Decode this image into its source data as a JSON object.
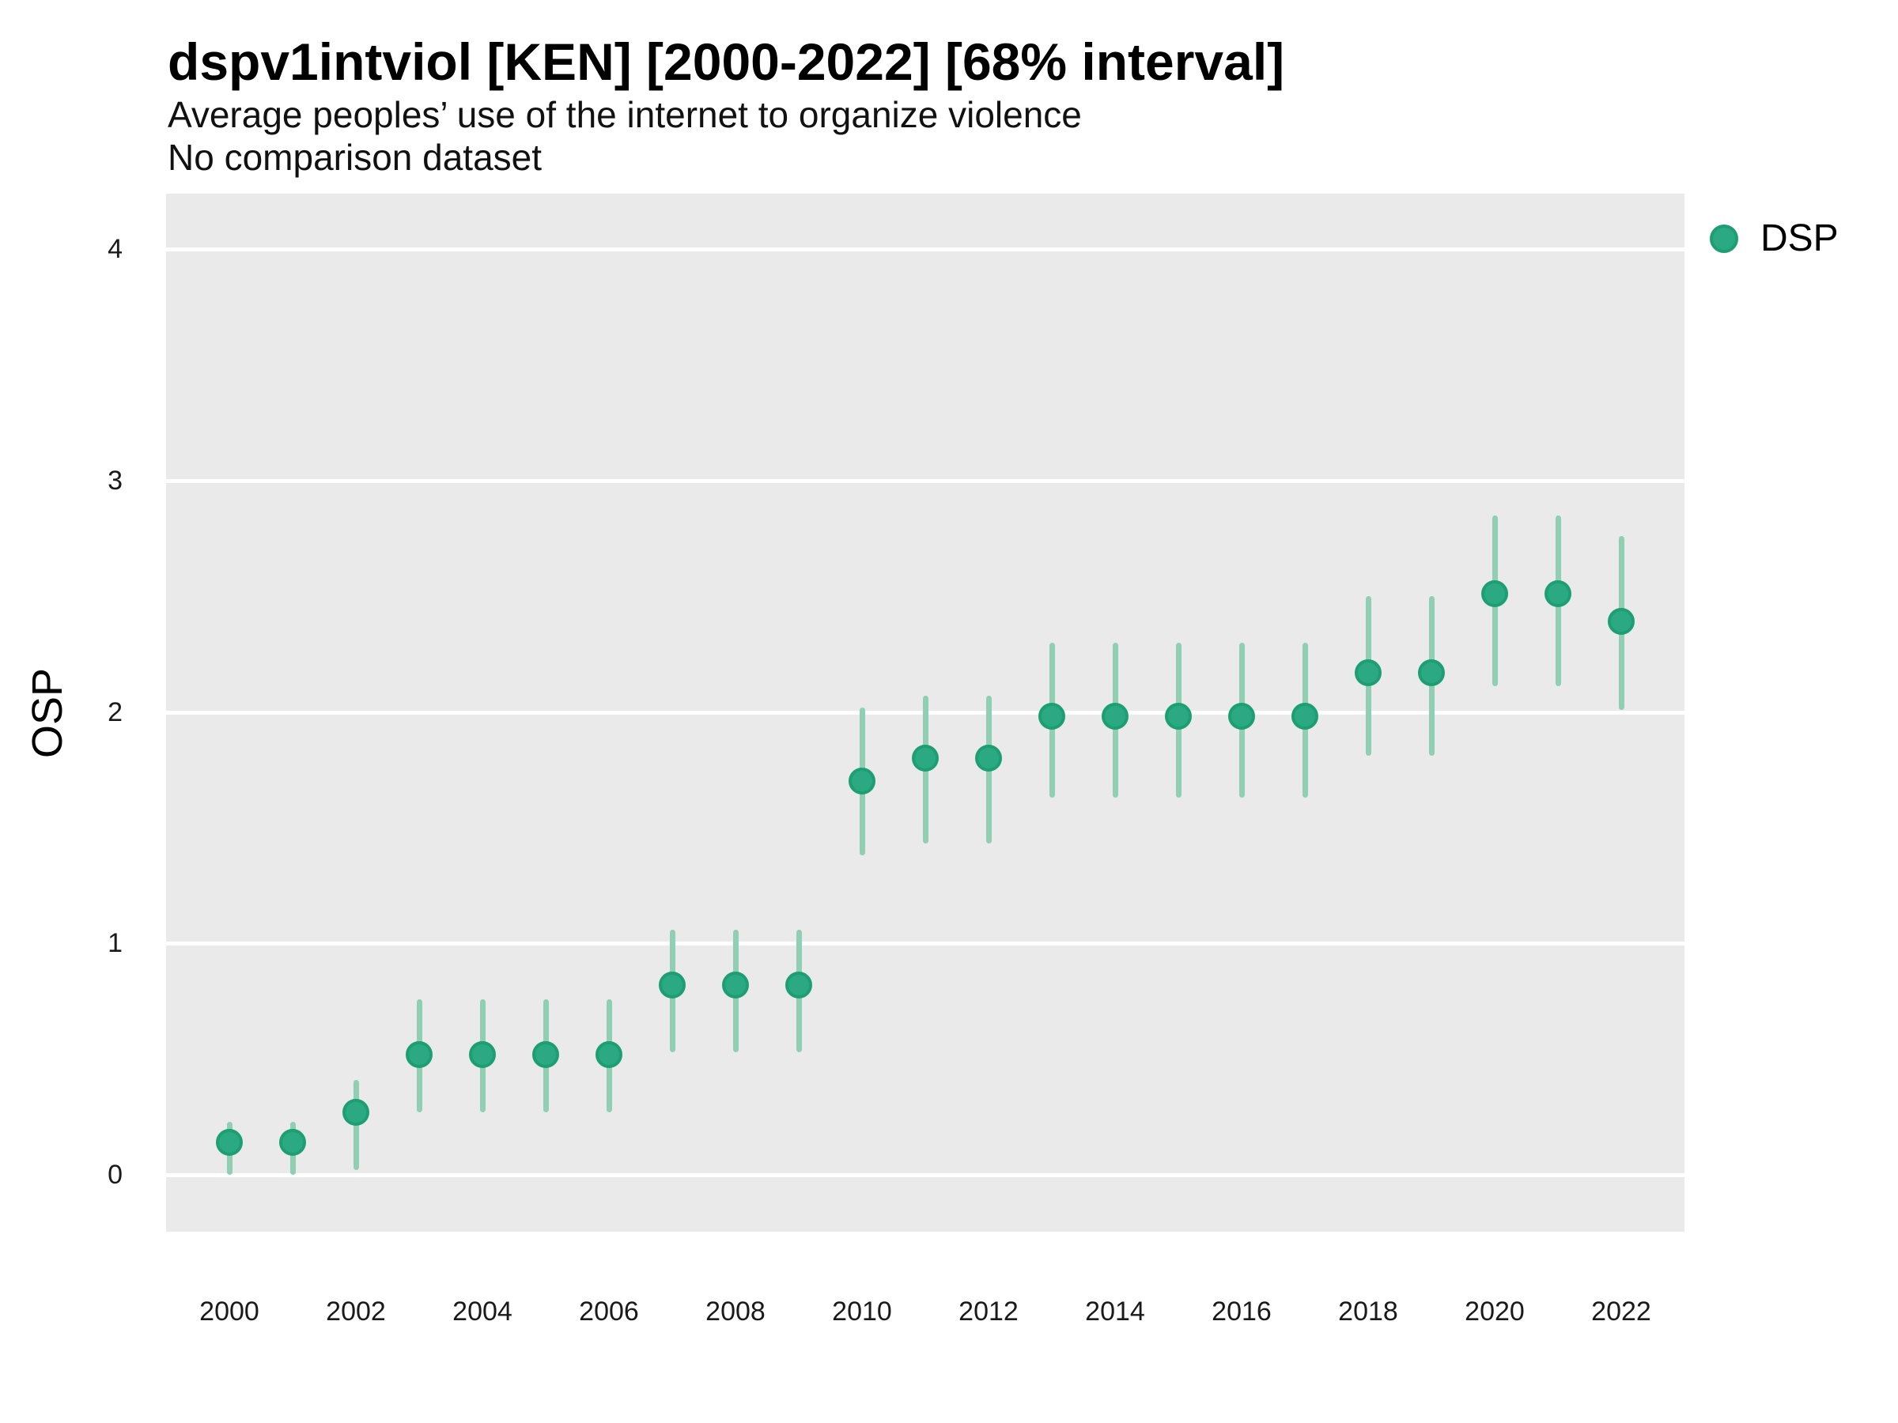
{
  "header": {
    "title": "dspv1intviol [KEN] [2000-2022] [68% interval]",
    "subtitle": "Average peoples’ use of the internet to organize violence",
    "subtitle2": "No comparison dataset"
  },
  "legend": {
    "position": "right",
    "items": [
      {
        "label": "DSP",
        "color": "#2aa982"
      }
    ]
  },
  "colors": {
    "point_fill": "#2aa982",
    "point_stroke": "#1e9e73",
    "interval_bar": "#90cfb4",
    "panel_background": "#eaeaea",
    "gridline": "#ffffff",
    "text": "#000000"
  },
  "chart_data": {
    "type": "scatter",
    "subtype": "pointrange",
    "title": "dspv1intviol [KEN] [2000-2022] [68% interval]",
    "subtitle": "Average peoples’ use of the internet to organize violence",
    "note": "No comparison dataset",
    "xlabel": "",
    "ylabel": "OSP",
    "interval_level": "68%",
    "xlim": [
      1999,
      2023
    ],
    "ylim": [
      -0.25,
      4.24
    ],
    "grid": "major-horizontal-only",
    "x_ticks": [
      2000,
      2002,
      2004,
      2006,
      2008,
      2010,
      2012,
      2014,
      2016,
      2018,
      2020,
      2022
    ],
    "y_ticks": [
      0,
      1,
      2,
      3,
      4
    ],
    "series": [
      {
        "name": "DSP",
        "points": [
          {
            "year": 2000,
            "est": 0.14,
            "lo": 0.0,
            "hi": 0.23
          },
          {
            "year": 2001,
            "est": 0.14,
            "lo": 0.0,
            "hi": 0.23
          },
          {
            "year": 2002,
            "est": 0.27,
            "lo": 0.02,
            "hi": 0.41
          },
          {
            "year": 2003,
            "est": 0.52,
            "lo": 0.27,
            "hi": 0.76
          },
          {
            "year": 2004,
            "est": 0.52,
            "lo": 0.27,
            "hi": 0.76
          },
          {
            "year": 2005,
            "est": 0.52,
            "lo": 0.27,
            "hi": 0.76
          },
          {
            "year": 2006,
            "est": 0.52,
            "lo": 0.27,
            "hi": 0.76
          },
          {
            "year": 2007,
            "est": 0.82,
            "lo": 0.53,
            "hi": 1.06
          },
          {
            "year": 2008,
            "est": 0.82,
            "lo": 0.53,
            "hi": 1.06
          },
          {
            "year": 2009,
            "est": 0.82,
            "lo": 0.53,
            "hi": 1.06
          },
          {
            "year": 2010,
            "est": 1.7,
            "lo": 1.38,
            "hi": 2.02
          },
          {
            "year": 2011,
            "est": 1.8,
            "lo": 1.43,
            "hi": 2.07
          },
          {
            "year": 2012,
            "est": 1.8,
            "lo": 1.43,
            "hi": 2.07
          },
          {
            "year": 2013,
            "est": 1.98,
            "lo": 1.63,
            "hi": 2.3
          },
          {
            "year": 2014,
            "est": 1.98,
            "lo": 1.63,
            "hi": 2.3
          },
          {
            "year": 2015,
            "est": 1.98,
            "lo": 1.63,
            "hi": 2.3
          },
          {
            "year": 2016,
            "est": 1.98,
            "lo": 1.63,
            "hi": 2.3
          },
          {
            "year": 2017,
            "est": 1.98,
            "lo": 1.63,
            "hi": 2.3
          },
          {
            "year": 2018,
            "est": 2.17,
            "lo": 1.81,
            "hi": 2.5
          },
          {
            "year": 2019,
            "est": 2.17,
            "lo": 1.81,
            "hi": 2.5
          },
          {
            "year": 2020,
            "est": 2.51,
            "lo": 2.11,
            "hi": 2.85
          },
          {
            "year": 2021,
            "est": 2.51,
            "lo": 2.11,
            "hi": 2.85
          },
          {
            "year": 2022,
            "est": 2.39,
            "lo": 2.01,
            "hi": 2.76
          }
        ]
      }
    ]
  }
}
